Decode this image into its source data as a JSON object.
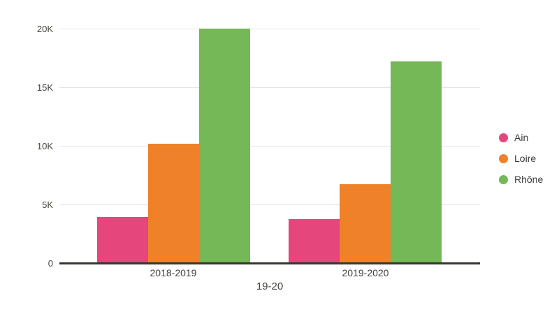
{
  "chart_data": {
    "type": "bar",
    "title": "",
    "xlabel": "19-20",
    "ylabel": "",
    "categories": [
      "2018-2019",
      "2019-2020"
    ],
    "series": [
      {
        "name": "Ain",
        "color": "#e5467c",
        "values": [
          4000,
          3800
        ]
      },
      {
        "name": "Loire",
        "color": "#ee8129",
        "values": [
          10250,
          6800
        ]
      },
      {
        "name": "Rhône",
        "color": "#74b857",
        "values": [
          20050,
          17250
        ]
      }
    ],
    "yticks": [
      0,
      5000,
      10000,
      15000,
      20000
    ],
    "ytick_labels": [
      "0",
      "5K",
      "10K",
      "15K",
      "20K"
    ],
    "ylim": [
      0,
      21500
    ],
    "grid": true,
    "legend_position": "right",
    "legend_labels": [
      "Ain",
      "Loire",
      "Rhône"
    ]
  },
  "colors": {
    "background": "#ffffff",
    "gridline": "#e4e4e4",
    "axis_line": "#36362e",
    "tick_label": "#44443c",
    "category_label": "#3f3f3f",
    "legend_text": "#3a3a3a"
  }
}
